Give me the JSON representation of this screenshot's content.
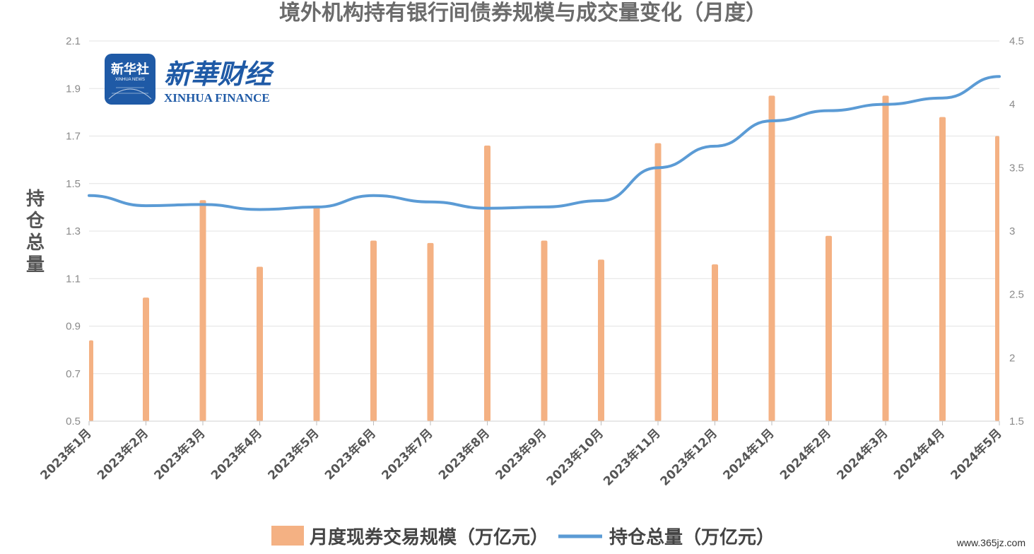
{
  "logo": {
    "badge_text": "新华社",
    "badge_small": "XINHUA NEWS",
    "brand_cn": "新華财经",
    "brand_en": "XINHUA FINANCE"
  },
  "watermark": "www.365jz.com",
  "colors": {
    "bar": "#f4b183",
    "line": "#5b9bd5",
    "grid": "#e3e3e3",
    "text": "#555555"
  },
  "chart_data": {
    "type": "bar",
    "title": "境外机构持有银行间债券规模与成交量变化（月度）",
    "ylabel": "持仓总量",
    "xlabel": "",
    "categories": [
      "2023年1月",
      "2023年2月",
      "2023年3月",
      "2023年4月",
      "2023年5月",
      "2023年6月",
      "2023年7月",
      "2023年8月",
      "2023年9月",
      "2023年10月",
      "2023年11月",
      "2023年12月",
      "2024年1月",
      "2024年2月",
      "2024年3月",
      "2024年4月",
      "2024年5月"
    ],
    "ylim": [
      0.5,
      2.1
    ],
    "yticks": [
      0.5,
      0.7,
      0.9,
      1.1,
      1.3,
      1.5,
      1.7,
      1.9,
      2.1
    ],
    "y2lim": [
      1.5,
      4.5
    ],
    "y2ticks": [
      1.5,
      2,
      2.5,
      3,
      3.5,
      4,
      4.5
    ],
    "grid": true,
    "legend_position": "bottom",
    "series": [
      {
        "name": "月度现券交易规模（万亿元）",
        "type": "bar",
        "axis": "left",
        "values": [
          0.84,
          1.02,
          1.43,
          1.15,
          1.4,
          1.26,
          1.25,
          1.66,
          1.26,
          1.18,
          1.67,
          1.16,
          1.87,
          1.28,
          1.87,
          1.78,
          1.7
        ]
      },
      {
        "name": "持仓总量（万亿元）",
        "type": "line",
        "axis": "right",
        "values": [
          3.28,
          3.2,
          3.21,
          3.17,
          3.19,
          3.28,
          3.23,
          3.18,
          3.19,
          3.24,
          3.5,
          3.67,
          3.87,
          3.95,
          4.0,
          4.05,
          4.22
        ]
      }
    ]
  }
}
